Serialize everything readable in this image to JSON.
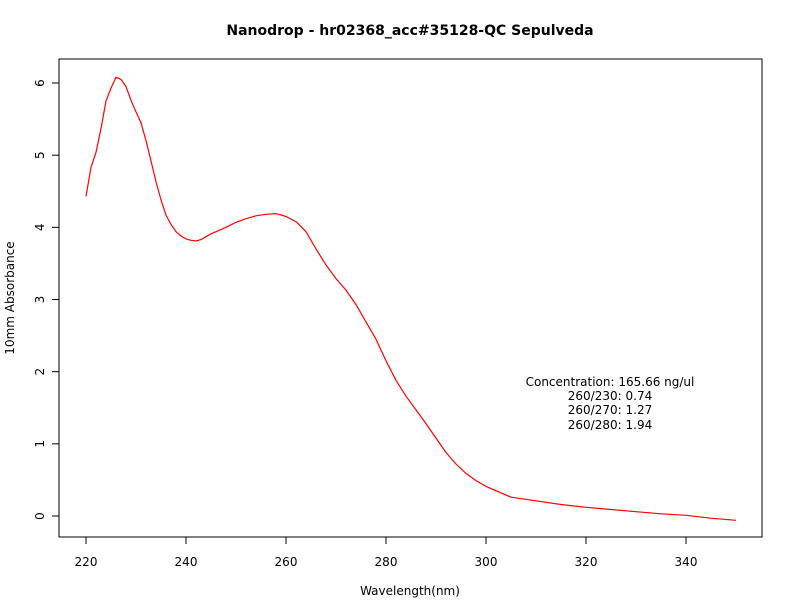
{
  "chart_data": {
    "type": "line",
    "title": "Nanodrop - hr02368_acc#35128-QC Sepulveda",
    "xlabel": "Wavelength(nm)",
    "ylabel": "10mm Absorbance",
    "xlim": [
      220,
      350
    ],
    "ylim": [
      0,
      6.1
    ],
    "x_ticks": [
      "220",
      "240",
      "260",
      "280",
      "300",
      "320",
      "340"
    ],
    "y_ticks": [
      "0",
      "1",
      "2",
      "3",
      "4",
      "5",
      "6"
    ],
    "grid": false,
    "legend": "none",
    "series": [
      {
        "color": "#ff0000",
        "x": [
          220,
          221,
          222,
          223,
          224,
          225,
          226,
          227,
          228,
          229,
          230,
          231,
          232,
          233,
          234,
          235,
          236,
          237,
          238,
          239,
          240,
          241,
          242,
          243,
          244,
          245,
          246,
          248,
          250,
          252,
          254,
          256,
          258,
          260,
          262,
          264,
          266,
          268,
          270,
          272,
          274,
          276,
          278,
          280,
          282,
          284,
          286,
          288,
          290,
          292,
          294,
          296,
          298,
          300,
          305,
          310,
          315,
          320,
          325,
          330,
          335,
          340,
          345,
          350
        ],
        "y": [
          4.43,
          4.83,
          5.04,
          5.37,
          5.75,
          5.93,
          6.08,
          6.05,
          5.95,
          5.76,
          5.6,
          5.45,
          5.2,
          4.92,
          4.63,
          4.38,
          4.17,
          4.04,
          3.94,
          3.88,
          3.84,
          3.82,
          3.81,
          3.83,
          3.87,
          3.91,
          3.94,
          4.0,
          4.07,
          4.12,
          4.16,
          4.18,
          4.19,
          4.15,
          4.08,
          3.94,
          3.7,
          3.48,
          3.29,
          3.13,
          2.93,
          2.69,
          2.45,
          2.15,
          1.88,
          1.66,
          1.47,
          1.28,
          1.08,
          0.88,
          0.72,
          0.59,
          0.49,
          0.41,
          0.26,
          0.21,
          0.16,
          0.12,
          0.09,
          0.06,
          0.03,
          0.01,
          -0.03,
          -0.06
        ]
      }
    ],
    "annotations": [
      "Concentration: 165.66 ng/ul",
      "260/230: 0.74",
      "260/270: 1.27",
      "260/280: 1.94"
    ]
  }
}
